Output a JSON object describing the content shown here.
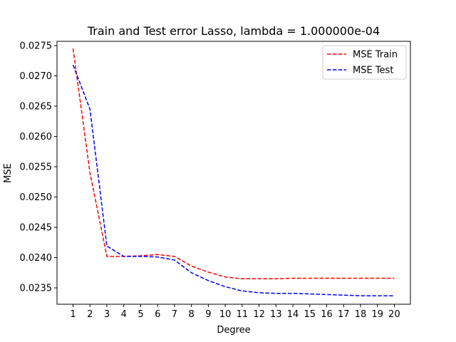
{
  "chart_data": {
    "type": "line",
    "title": "Train and Test error Lasso, lambda = 1.000000e-04",
    "xlabel": "Degree",
    "ylabel": "MSE",
    "x": [
      1,
      2,
      3,
      4,
      5,
      6,
      7,
      8,
      9,
      10,
      11,
      12,
      13,
      14,
      15,
      16,
      17,
      18,
      19,
      20
    ],
    "xlim": [
      0.05,
      20.95
    ],
    "ylim": [
      0.02323,
      0.02757
    ],
    "xticks": [
      1,
      2,
      3,
      4,
      5,
      6,
      7,
      8,
      9,
      10,
      11,
      12,
      13,
      14,
      15,
      16,
      17,
      18,
      19,
      20
    ],
    "yticks": [
      "0.0235",
      "0.0240",
      "0.0245",
      "0.0250",
      "0.0255",
      "0.0260",
      "0.0265",
      "0.0270",
      "0.0275"
    ],
    "grid": false,
    "legend_position": "top-right",
    "series": [
      {
        "name": "MSE Train",
        "color": "#ff0000",
        "dash": "dashed",
        "values": [
          0.02745,
          0.0254,
          0.02402,
          0.02402,
          0.02403,
          0.02405,
          0.02402,
          0.02386,
          0.02376,
          0.02368,
          0.02365,
          0.02365,
          0.02365,
          0.02366,
          0.02366,
          0.02366,
          0.02366,
          0.02366,
          0.02366,
          0.02366
        ]
      },
      {
        "name": "MSE Test",
        "color": "#0000ff",
        "dash": "dashed",
        "values": [
          0.02718,
          0.02645,
          0.02419,
          0.02402,
          0.02402,
          0.02401,
          0.02396,
          0.02375,
          0.02362,
          0.02352,
          0.02345,
          0.02342,
          0.02341,
          0.02341,
          0.0234,
          0.02339,
          0.02338,
          0.02337,
          0.02337,
          0.02337
        ]
      }
    ]
  }
}
